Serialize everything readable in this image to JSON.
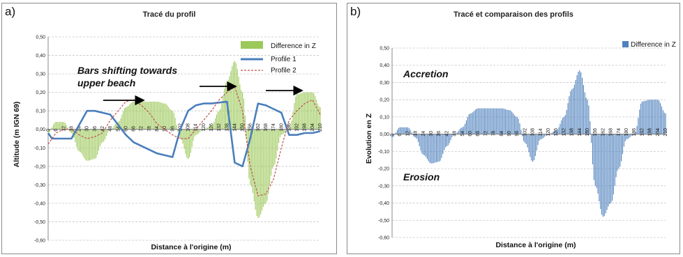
{
  "panels": {
    "a": {
      "label": "a)",
      "title": "Tracé du profil"
    },
    "b": {
      "label": "b)",
      "title": "Tracé et comparaison des profils"
    }
  },
  "chart_data": [
    {
      "type": "bar",
      "title": "Tracé du profil",
      "xlabel": "Distance à l'origine (m)",
      "ylabel": "Altitude (m IGN 69)",
      "ylim": [
        -0.6,
        0.5
      ],
      "ytick_labels": [
        "0,50",
        "0,40",
        "0,30",
        "0,20",
        "0,10",
        "0,00",
        "-0,10",
        "-0,20",
        "-0,30",
        "-0,40",
        "-0,50",
        "-0,60"
      ],
      "x_tick_values": [
        0,
        6,
        12,
        18,
        24,
        30,
        36,
        42,
        48,
        54,
        60,
        66,
        72,
        78,
        84,
        90,
        96,
        102,
        108,
        114,
        120,
        126,
        132,
        138,
        144,
        150,
        156,
        162,
        168,
        174,
        180,
        186,
        192,
        198,
        204,
        210
      ],
      "legend": [
        "Difference in Z",
        "Profile 1",
        "Profile 2"
      ],
      "legend_position": "top-right",
      "grid": true,
      "colors": {
        "diff": "#9cc95a",
        "profile1": "#4a7ebb",
        "profile2": "#c0504d"
      },
      "series": [
        {
          "name": "Difference in Z",
          "kind": "bar",
          "x": [
            0,
            6,
            12,
            18,
            24,
            30,
            36,
            42,
            48,
            54,
            60,
            66,
            72,
            78,
            84,
            90,
            96,
            102,
            108,
            114,
            120,
            126,
            132,
            138,
            144,
            150,
            156,
            162,
            168,
            174,
            180,
            186,
            192,
            198,
            204,
            210
          ],
          "values": [
            -0.02,
            0.04,
            0.04,
            -0.02,
            -0.12,
            -0.17,
            -0.16,
            -0.07,
            0.0,
            0.04,
            0.12,
            0.15,
            0.15,
            0.15,
            0.15,
            0.14,
            0.1,
            -0.05,
            -0.16,
            -0.03,
            0.0,
            0.02,
            0.1,
            0.26,
            0.37,
            0.2,
            -0.3,
            -0.48,
            -0.4,
            -0.2,
            -0.03,
            0.0,
            0.19,
            0.2,
            0.2,
            0.12
          ]
        },
        {
          "name": "Profile 1",
          "kind": "line",
          "x": [
            0,
            3,
            12,
            18,
            30,
            36,
            48,
            60,
            66,
            84,
            90,
            96,
            102,
            108,
            114,
            120,
            126,
            138,
            144,
            150,
            156,
            162,
            168,
            174,
            180,
            186,
            192,
            198,
            204,
            210
          ],
          "values": [
            -0.02,
            -0.05,
            -0.05,
            -0.05,
            0.1,
            0.1,
            0.08,
            -0.03,
            -0.07,
            -0.13,
            -0.14,
            -0.15,
            0.0,
            0.1,
            0.13,
            0.14,
            0.14,
            0.15,
            -0.18,
            -0.2,
            -0.05,
            0.14,
            0.13,
            0.11,
            0.09,
            -0.03,
            -0.03,
            -0.02,
            -0.02,
            -0.01
          ]
        },
        {
          "name": "Profile 2",
          "kind": "line",
          "x": [
            0,
            6,
            12,
            18,
            24,
            30,
            36,
            42,
            48,
            54,
            60,
            66,
            72,
            78,
            84,
            90,
            96,
            102,
            108,
            114,
            120,
            126,
            132,
            138,
            144,
            150,
            156,
            162,
            168,
            174,
            180,
            186,
            192,
            198,
            204,
            210
          ],
          "values": [
            -0.08,
            -0.02,
            0.0,
            0.0,
            -0.03,
            -0.05,
            -0.04,
            -0.02,
            0.05,
            0.1,
            0.15,
            0.16,
            0.13,
            0.09,
            0.03,
            0.0,
            -0.03,
            -0.05,
            -0.05,
            0.0,
            0.05,
            0.1,
            0.16,
            0.2,
            0.23,
            0.1,
            -0.2,
            -0.36,
            -0.35,
            -0.27,
            -0.1,
            0.05,
            0.1,
            0.14,
            0.16,
            0.08
          ]
        }
      ],
      "annotations": [
        "Bars shifting towards",
        "upper beach"
      ]
    },
    {
      "type": "bar",
      "title": "Tracé et comparaison des profils",
      "xlabel": "Distance à l'origine (m)",
      "ylabel": "Evolution en Z",
      "ylim": [
        -0.6,
        0.5
      ],
      "ytick_labels": [
        "0,50",
        "0,40",
        "0,30",
        "0,20",
        "0,10",
        "0,00",
        "-0,10",
        "-0,20",
        "-0,30",
        "-0,40",
        "-0,50",
        "-0,60"
      ],
      "x_tick_values": [
        0,
        6,
        12,
        18,
        24,
        30,
        36,
        42,
        48,
        54,
        60,
        66,
        72,
        78,
        84,
        90,
        96,
        102,
        108,
        114,
        120,
        126,
        132,
        138,
        144,
        150,
        156,
        162,
        168,
        174,
        180,
        186,
        192,
        198,
        204,
        210
      ],
      "legend": [
        "Difference in Z"
      ],
      "legend_position": "top-right",
      "grid": true,
      "colors": {
        "diff": "#4f81bd"
      },
      "series": [
        {
          "name": "Difference in Z",
          "kind": "bar",
          "x": [
            0,
            6,
            12,
            18,
            24,
            30,
            36,
            42,
            48,
            54,
            60,
            66,
            72,
            78,
            84,
            90,
            96,
            102,
            108,
            114,
            120,
            126,
            132,
            138,
            144,
            150,
            156,
            162,
            168,
            174,
            180,
            186,
            192,
            198,
            204,
            210
          ],
          "values": [
            -0.02,
            0.04,
            0.04,
            -0.02,
            -0.12,
            -0.17,
            -0.16,
            -0.07,
            0.0,
            0.04,
            0.12,
            0.15,
            0.15,
            0.15,
            0.15,
            0.14,
            0.1,
            -0.05,
            -0.16,
            -0.03,
            0.0,
            0.02,
            0.1,
            0.26,
            0.37,
            0.2,
            -0.3,
            -0.48,
            -0.4,
            -0.2,
            -0.03,
            0.0,
            0.19,
            0.2,
            0.2,
            0.12
          ]
        }
      ],
      "annotations": [
        "Accretion",
        "Erosion"
      ]
    }
  ]
}
